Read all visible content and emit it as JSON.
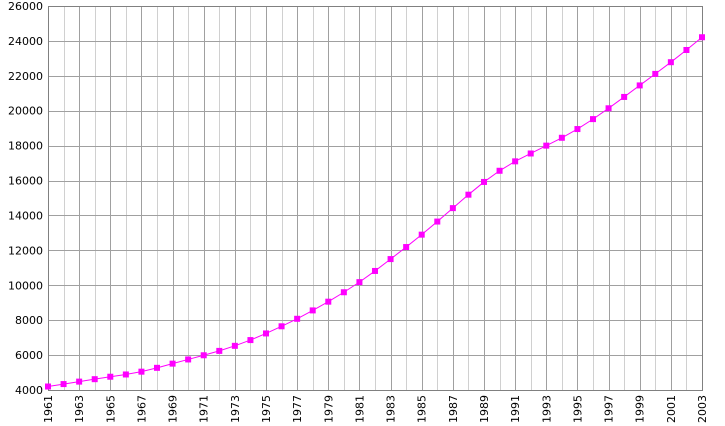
{
  "chart_data": {
    "type": "line",
    "title": "",
    "xlabel": "",
    "ylabel": "",
    "xlim": [
      1961,
      2003
    ],
    "ylim": [
      4000,
      26000
    ],
    "yticks": [
      4000,
      6000,
      8000,
      10000,
      12000,
      14000,
      16000,
      18000,
      20000,
      22000,
      24000,
      26000
    ],
    "xticks": [
      1961,
      1963,
      1965,
      1967,
      1969,
      1971,
      1973,
      1975,
      1977,
      1979,
      1981,
      1983,
      1985,
      1987,
      1989,
      1991,
      1993,
      1995,
      1997,
      1999,
      2001,
      2003
    ],
    "grid": true,
    "legend": "none",
    "series": [
      {
        "color": "#ff00ff",
        "marker": "square",
        "x": [
          1961,
          1962,
          1963,
          1964,
          1965,
          1966,
          1967,
          1968,
          1969,
          1970,
          1971,
          1972,
          1973,
          1974,
          1975,
          1976,
          1977,
          1978,
          1979,
          1980,
          1981,
          1982,
          1983,
          1984,
          1985,
          1986,
          1987,
          1988,
          1989,
          1990,
          1991,
          1992,
          1993,
          1994,
          1995,
          1996,
          1997,
          1998,
          1999,
          2000,
          2001,
          2002,
          2003
        ],
        "y": [
          4200,
          4340,
          4480,
          4620,
          4760,
          4890,
          5050,
          5270,
          5510,
          5750,
          5990,
          6240,
          6530,
          6860,
          7240,
          7650,
          8080,
          8560,
          9060,
          9600,
          10180,
          10820,
          11500,
          12190,
          12900,
          13650,
          14420,
          15190,
          15920,
          16560,
          17100,
          17550,
          18000,
          18450,
          18950,
          19520,
          20140,
          20790,
          21450,
          22110,
          22780,
          23480,
          24210
        ]
      }
    ]
  }
}
